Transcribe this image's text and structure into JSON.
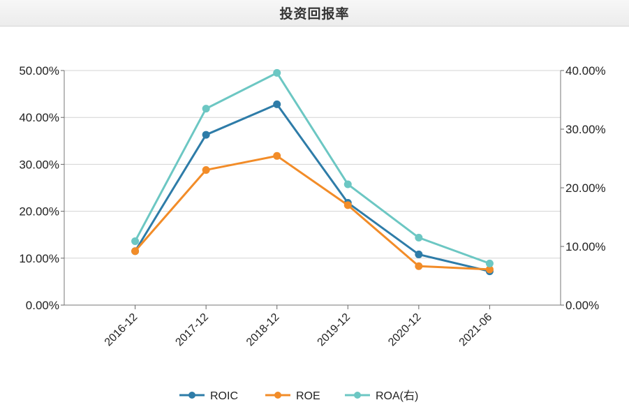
{
  "header": {
    "title": "投资回报率"
  },
  "chart_data": {
    "type": "line",
    "title": "投资回报率",
    "categories": [
      "2016-12",
      "2017-12",
      "2018-12",
      "2019-12",
      "2020-12",
      "2021-06"
    ],
    "left_axis": {
      "ticks": [
        "0.00%",
        "10.00%",
        "20.00%",
        "30.00%",
        "40.00%",
        "50.00%"
      ],
      "ylim": [
        0,
        50
      ]
    },
    "right_axis": {
      "ticks": [
        "0.00%",
        "10.00%",
        "20.00%",
        "30.00%",
        "40.00%"
      ],
      "ylim": [
        0,
        40
      ]
    },
    "grid": true,
    "legend_position": "bottom",
    "series": [
      {
        "name": "ROIC",
        "axis": "left",
        "color": "#2e7ca8",
        "values": [
          11.5,
          36.3,
          42.8,
          21.8,
          10.8,
          7.2
        ]
      },
      {
        "name": "ROE",
        "axis": "left",
        "color": "#f28c28",
        "values": [
          11.5,
          28.8,
          31.8,
          21.3,
          8.3,
          7.6
        ]
      },
      {
        "name": "ROA(右)",
        "axis": "right",
        "color": "#6cc7c3",
        "values": [
          10.9,
          33.5,
          39.6,
          20.6,
          11.5,
          7.1
        ]
      }
    ]
  }
}
